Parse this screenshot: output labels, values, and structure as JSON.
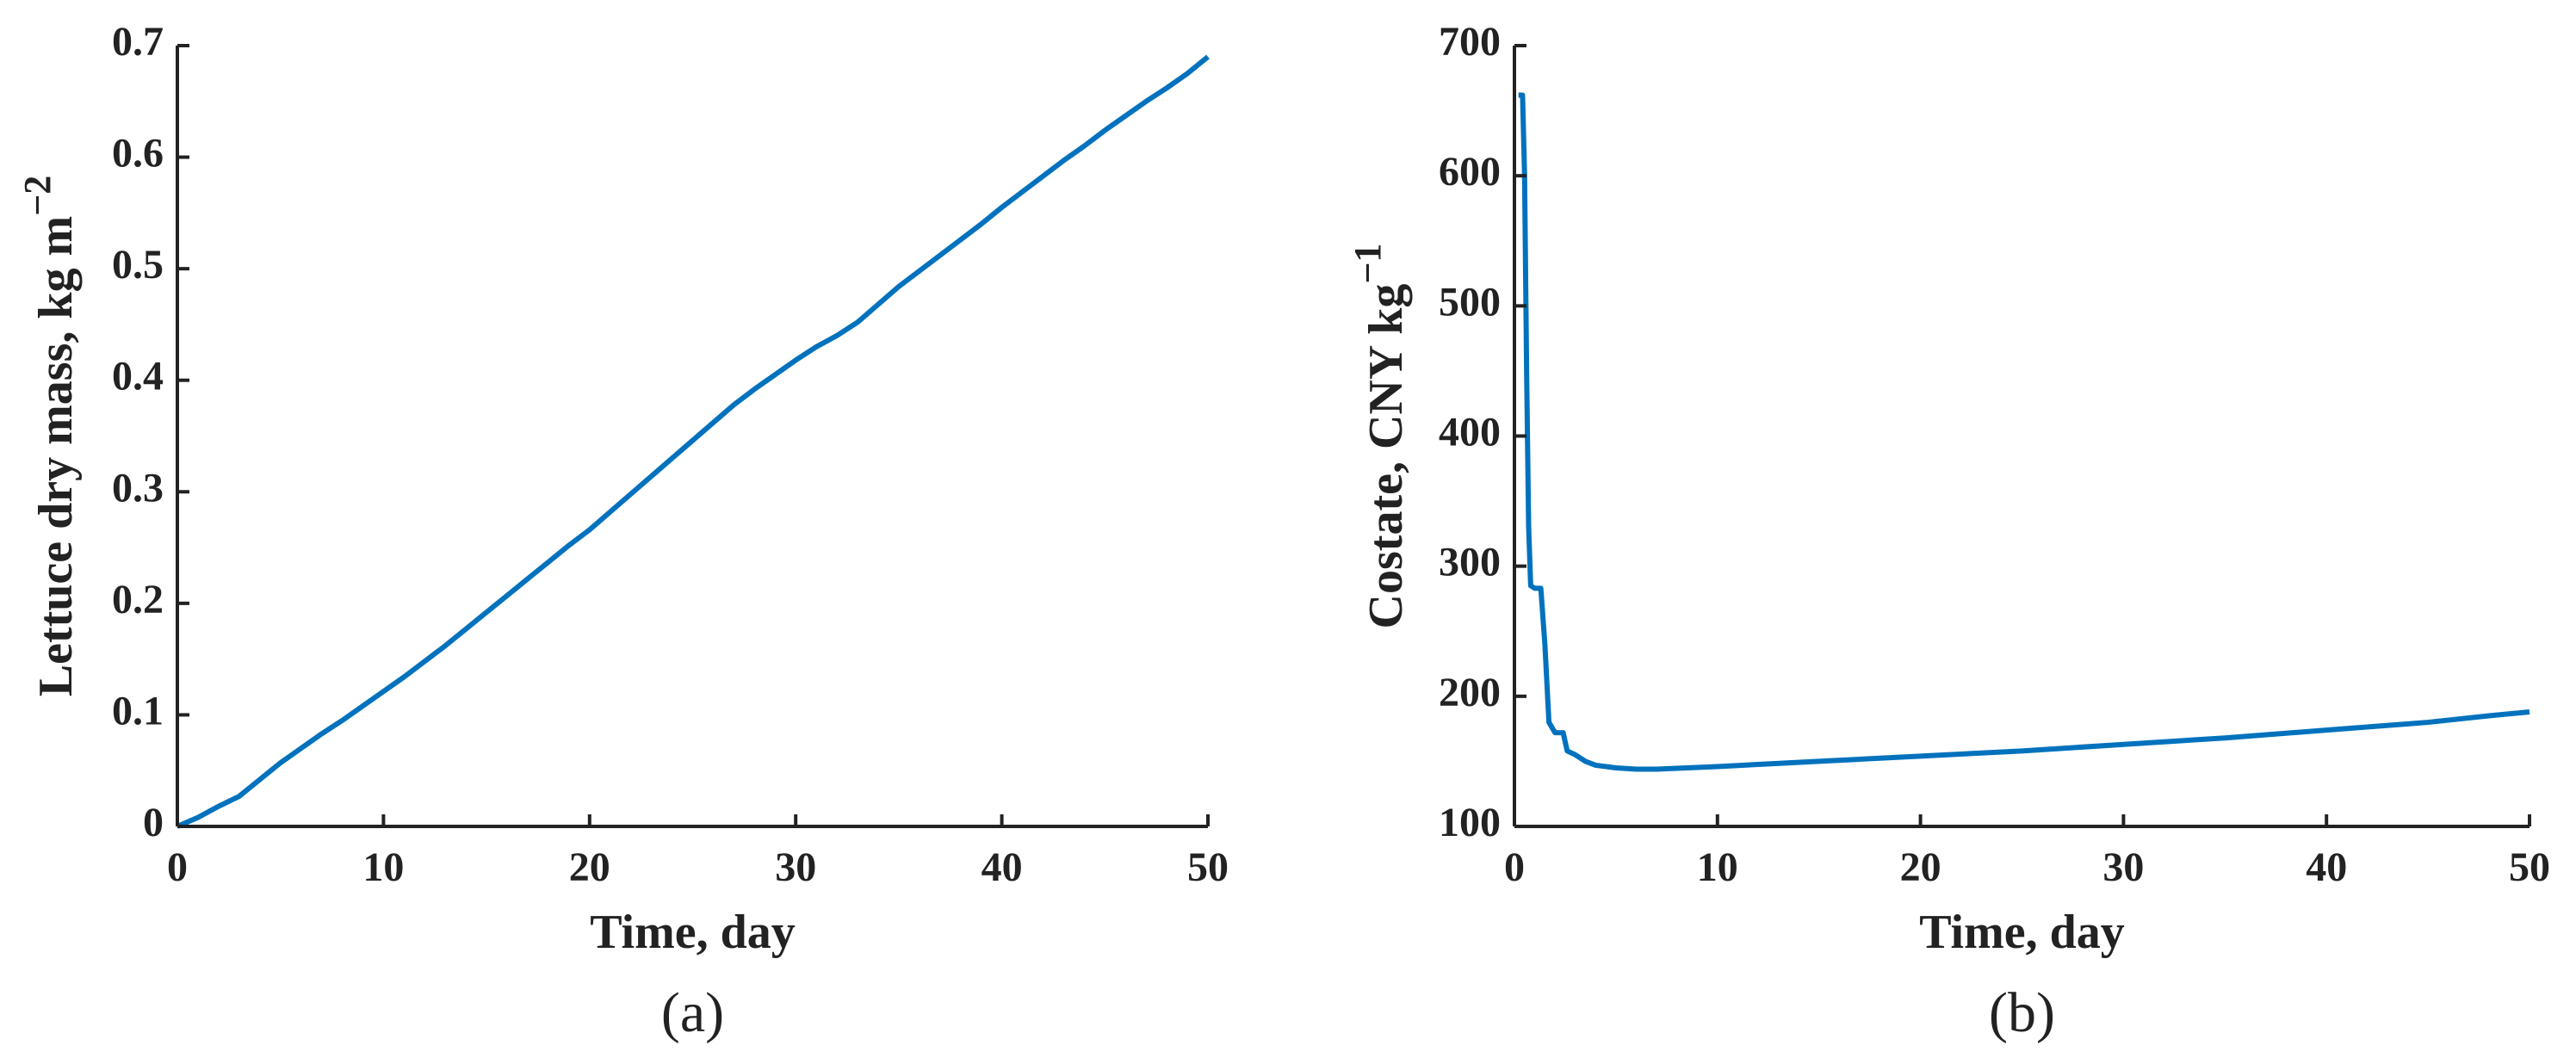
{
  "chart_data": [
    {
      "type": "line",
      "panel_label": "(a)",
      "xlabel": "Time, day",
      "ylabel": "Lettuce dry mass, kg m",
      "ylabel_superscript": "−2",
      "xlim": [
        0,
        50
      ],
      "xticks": [
        0,
        10,
        20,
        30,
        40,
        50
      ],
      "ylim": [
        0,
        0.7
      ],
      "yticks": [
        0,
        0.1,
        0.2,
        0.3,
        0.4,
        0.5,
        0.6,
        0.7
      ],
      "series": [
        {
          "color": "#0072bd",
          "x": [
            0,
            1,
            2,
            3,
            4,
            5,
            6,
            7,
            8,
            9,
            10,
            11,
            12,
            13,
            14,
            15,
            16,
            17,
            18,
            19,
            20,
            21,
            22,
            23,
            24,
            25,
            26,
            27,
            28,
            29,
            30,
            31,
            32,
            33,
            34,
            35,
            36,
            37,
            38,
            39,
            40,
            41,
            42,
            43,
            44,
            45,
            46,
            47,
            48,
            49,
            50
          ],
          "values": [
            0,
            0.008,
            0.018,
            0.027,
            0.042,
            0.057,
            0.07,
            0.083,
            0.095,
            0.108,
            0.121,
            0.134,
            0.148,
            0.162,
            0.177,
            0.192,
            0.207,
            0.222,
            0.237,
            0.252,
            0.266,
            0.282,
            0.298,
            0.314,
            0.33,
            0.346,
            0.362,
            0.378,
            0.392,
            0.405,
            0.418,
            0.43,
            0.44,
            0.452,
            0.468,
            0.484,
            0.498,
            0.512,
            0.526,
            0.54,
            0.555,
            0.569,
            0.583,
            0.597,
            0.61,
            0.624,
            0.637,
            0.65,
            0.662,
            0.675,
            0.69
          ]
        }
      ]
    },
    {
      "type": "line",
      "panel_label": "(b)",
      "xlabel": "Time, day",
      "ylabel": "Costate, CNY kg",
      "ylabel_superscript": "−1",
      "xlim": [
        0,
        50
      ],
      "xticks": [
        0,
        10,
        20,
        30,
        40,
        50
      ],
      "ylim": [
        100,
        700
      ],
      "yticks": [
        100,
        200,
        300,
        400,
        500,
        600,
        700
      ],
      "series": [
        {
          "color": "#0072bd",
          "x": [
            0.2,
            0.4,
            0.5,
            0.6,
            0.7,
            0.8,
            1.0,
            1.3,
            1.5,
            1.7,
            2,
            2.4,
            2.6,
            3,
            3.5,
            4,
            5,
            6,
            7,
            10,
            15,
            20,
            25,
            30,
            35,
            40,
            45,
            48,
            50
          ],
          "values": [
            662,
            662,
            600,
            450,
            330,
            285,
            283,
            283,
            240,
            180,
            172,
            172,
            158,
            155,
            150,
            147,
            145,
            144,
            144,
            146,
            150,
            154,
            158,
            163,
            168,
            174,
            180,
            185,
            188
          ]
        }
      ]
    }
  ]
}
